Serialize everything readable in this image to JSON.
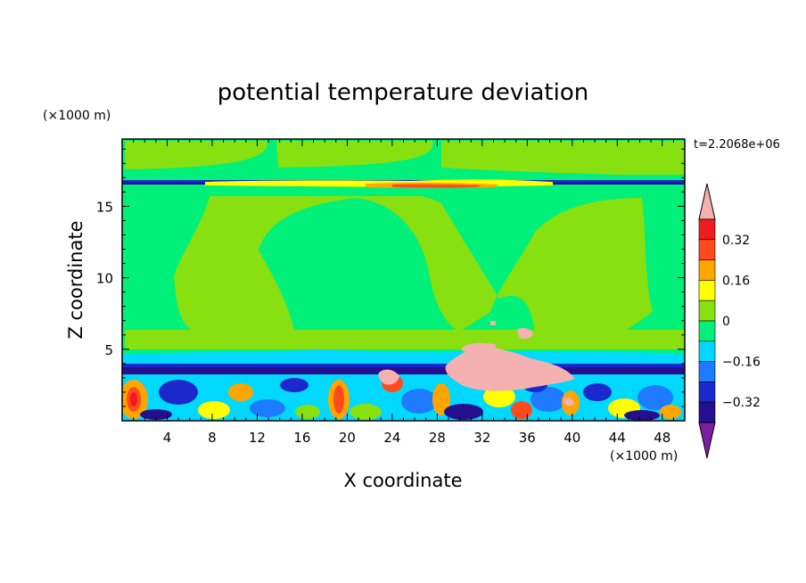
{
  "chart_data": {
    "type": "heatmap",
    "title": "potential temperature deviation",
    "xlabel": "X coordinate",
    "ylabel": "Z coordinate",
    "x_unit": "(×1000 m)",
    "y_unit": "(×1000 m)",
    "time_label": "t=2.2068e+06",
    "xlim": [
      0,
      50
    ],
    "ylim": [
      0,
      19.7
    ],
    "xticks": [
      "4",
      "8",
      "12",
      "16",
      "20",
      "24",
      "28",
      "32",
      "36",
      "40",
      "44",
      "48"
    ],
    "yticks": [
      "5",
      "10",
      "15"
    ],
    "colorbar": {
      "ticks": [
        "0.32",
        "0.16",
        "0",
        "−0.16",
        "−0.32"
      ],
      "levels": [
        -0.4,
        -0.32,
        -0.24,
        -0.16,
        -0.08,
        0,
        0.08,
        0.16,
        0.24,
        0.32,
        0.4
      ],
      "colors": [
        "#7a1fa0",
        "#24108f",
        "#1a28cc",
        "#1e7bff",
        "#00d8ff",
        "#00f07a",
        "#88e010",
        "#ffff00",
        "#ffa500",
        "#ff4a1e",
        "#ee1c1c",
        "#f5b0b0"
      ]
    },
    "fill_colors": {
      "background": "#00f07a",
      "warm_columns": "#88e010",
      "cool_band": "#00d8ff",
      "surface_band": "#24108f",
      "warm_anomaly": "#f5b0b0"
    }
  }
}
